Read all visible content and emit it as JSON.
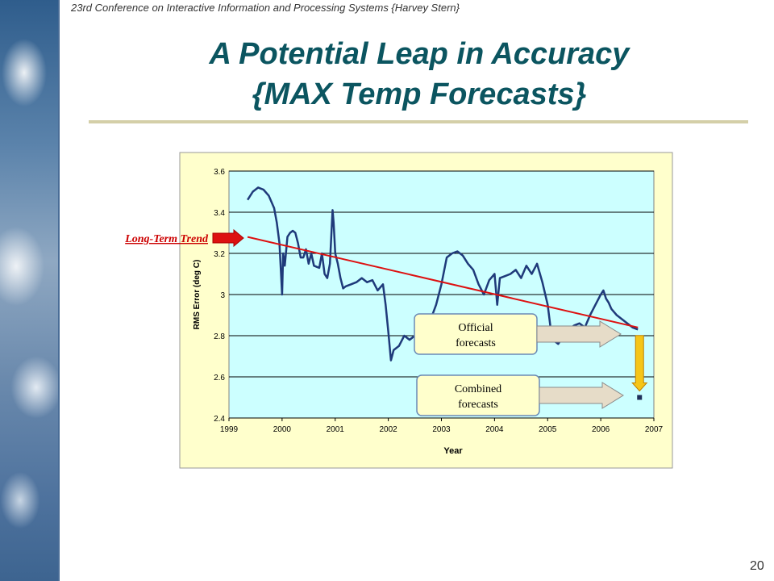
{
  "slide": {
    "header": "23rd Conference on Interactive Information and Processing Systems {Harvey Stern}",
    "title_line1": "A Potential Leap in Accuracy",
    "title_line2": "{MAX Temp Forecasts}",
    "page_number": "20"
  },
  "chart_data": {
    "type": "line",
    "xlabel": "Year",
    "ylabel": "RMS Error (deg C)",
    "xlim": [
      1999,
      2007
    ],
    "ylim": [
      2.4,
      3.6
    ],
    "x_ticks": [
      "1999",
      "2000",
      "2001",
      "2002",
      "2003",
      "2004",
      "2005",
      "2006",
      "2007"
    ],
    "y_ticks": [
      "2.4",
      "2.6",
      "2.8",
      "3",
      "3.2",
      "3.4",
      "3.6"
    ],
    "grid": "horizontal",
    "colors": {
      "plot_bg": "#ccffff",
      "chart_bg": "#ffffcc",
      "series": "#1f3a7a",
      "trend": "#dd1111",
      "arrow_fill": "#e6dcc8",
      "drop_arrow": "#f5c518"
    },
    "series": [
      {
        "x": [
          1999.35,
          1999.45,
          1999.55,
          1999.65,
          1999.75,
          1999.85,
          1999.9,
          1999.95,
          2000.0,
          2000.02,
          2000.05,
          2000.1,
          2000.15,
          2000.2,
          2000.25,
          2000.3,
          2000.35,
          2000.4,
          2000.45,
          2000.5,
          2000.55,
          2000.6,
          2000.7,
          2000.75,
          2000.8,
          2000.85,
          2000.9,
          2000.95,
          2000.97,
          2001.0,
          2001.05,
          2001.1,
          2001.15,
          2001.2,
          2001.3,
          2001.4,
          2001.5,
          2001.6,
          2001.7,
          2001.8,
          2001.9,
          2001.95,
          2002.0,
          2002.05,
          2002.1,
          2002.2,
          2002.3,
          2002.4,
          2002.5,
          2002.6,
          2002.7,
          2002.8,
          2002.9,
          2003.0,
          2003.1,
          2003.2,
          2003.3,
          2003.4,
          2003.5,
          2003.6,
          2003.7,
          2003.8,
          2003.9,
          2004.0,
          2004.05,
          2004.1,
          2004.2,
          2004.3,
          2004.4,
          2004.5,
          2004.6,
          2004.7,
          2004.8,
          2004.9,
          2005.0,
          2005.05,
          2005.1,
          2005.2,
          2005.3,
          2005.4,
          2005.5,
          2005.6,
          2005.7,
          2005.8,
          2005.9,
          2006.0,
          2006.05,
          2006.1,
          2006.15,
          2006.2,
          2006.3,
          2006.4,
          2006.5,
          2006.6,
          2006.7
        ],
        "y": [
          3.46,
          3.5,
          3.52,
          3.51,
          3.48,
          3.42,
          3.35,
          3.25,
          3.0,
          3.2,
          3.14,
          3.28,
          3.3,
          3.31,
          3.3,
          3.25,
          3.18,
          3.18,
          3.22,
          3.15,
          3.2,
          3.14,
          3.13,
          3.2,
          3.1,
          3.08,
          3.15,
          3.41,
          3.35,
          3.2,
          3.15,
          3.08,
          3.03,
          3.04,
          3.05,
          3.06,
          3.08,
          3.06,
          3.07,
          3.02,
          3.05,
          2.95,
          2.82,
          2.68,
          2.73,
          2.75,
          2.8,
          2.78,
          2.8,
          2.85,
          2.9,
          2.88,
          2.95,
          3.05,
          3.18,
          3.2,
          3.21,
          3.19,
          3.15,
          3.12,
          3.05,
          3.0,
          3.07,
          3.1,
          2.95,
          3.08,
          3.09,
          3.1,
          3.12,
          3.08,
          3.14,
          3.1,
          3.15,
          3.06,
          2.95,
          2.85,
          2.78,
          2.76,
          2.8,
          2.83,
          2.85,
          2.86,
          2.84,
          2.9,
          2.95,
          3.0,
          3.02,
          2.98,
          2.96,
          2.93,
          2.9,
          2.88,
          2.86,
          2.84,
          2.83
        ]
      }
    ],
    "trend": {
      "label": "Long-Term Trend",
      "x": [
        1999.35,
        2006.7
      ],
      "y": [
        3.28,
        2.84
      ]
    },
    "callouts": [
      {
        "label_line1": "Official",
        "label_line2": "forecasts"
      },
      {
        "label_line1": "Combined",
        "label_line2": "forecasts"
      }
    ],
    "combined_point": {
      "x": 2006.7,
      "y": 2.5
    }
  }
}
